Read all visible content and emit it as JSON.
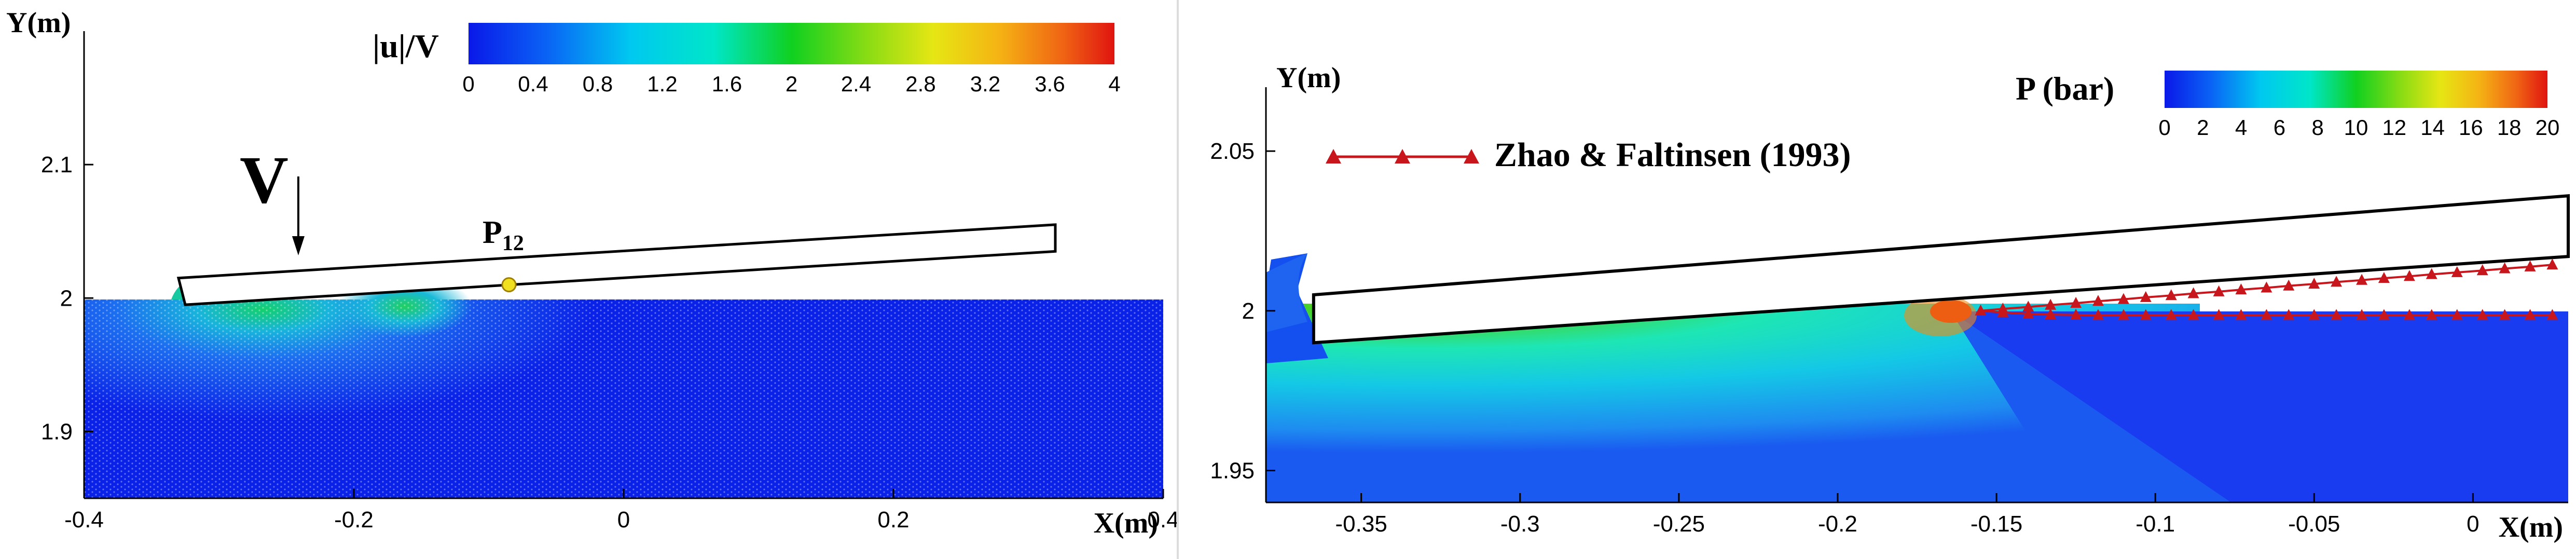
{
  "chart_data": [
    {
      "type": "heatmap",
      "title": "",
      "xlabel": "X(m)",
      "ylabel": "Y(m)",
      "xlim": [
        -0.4,
        0.4
      ],
      "ylim": [
        1.85,
        2.2
      ],
      "xticks": [
        -0.4,
        -0.2,
        0,
        0.2,
        0.4
      ],
      "xtick_labels": [
        "-0.4",
        "-0.2",
        "0",
        "0.2",
        "0.4"
      ],
      "yticks": [
        1.9,
        2.0,
        2.1
      ],
      "ytick_labels": [
        "1.9",
        "2",
        "2.1"
      ],
      "colorbar": {
        "label": "|u|/V",
        "range": [
          0,
          4
        ],
        "ticks": [
          "0",
          "0.4",
          "0.8",
          "1.2",
          "1.6",
          "2",
          "2.4",
          "2.8",
          "3.2",
          "3.6",
          "4"
        ]
      },
      "annotations": {
        "velocity_label": "V",
        "probe_label": "P",
        "probe_subscript": "12"
      },
      "plate": [
        [
          -0.325,
          1.995
        ],
        [
          -0.33,
          2.015
        ],
        [
          0.32,
          2.055
        ],
        [
          0.32,
          2.035
        ]
      ],
      "probe_point": [
        -0.085,
        2.01
      ],
      "free_surface_y": 2.0,
      "colors": {
        "low": "#0a2bf0",
        "mid": "#14c864",
        "high": "#d81a12"
      }
    },
    {
      "type": "heatmap",
      "title": "",
      "xlabel": "X(m)",
      "ylabel": "Y(m)",
      "xlim": [
        -0.38,
        0.03
      ],
      "ylim": [
        1.94,
        2.07
      ],
      "xticks": [
        -0.35,
        -0.3,
        -0.25,
        -0.2,
        -0.15,
        -0.1,
        -0.05,
        0
      ],
      "xtick_labels": [
        "-0.35",
        "-0.3",
        "-0.25",
        "-0.2",
        "-0.15",
        "-0.1",
        "-0.05",
        "0"
      ],
      "yticks": [
        1.95,
        2.0,
        2.05
      ],
      "ytick_labels": [
        "1.95",
        "2",
        "2.05"
      ],
      "colorbar": {
        "label": "P (bar)",
        "range": [
          0,
          20
        ],
        "ticks": [
          "0",
          "2",
          "4",
          "6",
          "8",
          "10",
          "12",
          "14",
          "16",
          "18",
          "20"
        ]
      },
      "legend": [
        {
          "name": "Zhao & Faltinsen (1993)",
          "marker": "triangle",
          "color": "#c8161d"
        }
      ],
      "plate": [
        [
          -0.365,
          1.99
        ],
        [
          -0.365,
          2.005
        ],
        [
          0.03,
          2.036
        ],
        [
          0.03,
          2.017
        ]
      ],
      "stagnation_x": -0.16,
      "series": [
        {
          "name": "Zhao & Faltinsen (1993)",
          "x": [
            -0.155,
            -0.148,
            -0.14,
            -0.133,
            -0.125,
            -0.118,
            -0.11,
            -0.103,
            -0.095,
            -0.088,
            -0.08,
            -0.073,
            -0.065,
            -0.058,
            -0.05,
            -0.043,
            -0.035,
            -0.028,
            -0.02,
            -0.013,
            -0.005,
            0.003,
            0.01,
            0.018,
            0.025
          ],
          "y_upper": [
            2.0,
            2.0006,
            2.0012,
            2.0018,
            2.0024,
            2.003,
            2.0036,
            2.0042,
            2.0048,
            2.0054,
            2.006,
            2.0066,
            2.0072,
            2.0078,
            2.0084,
            2.009,
            2.0096,
            2.0102,
            2.0108,
            2.0114,
            2.012,
            2.0126,
            2.0132,
            2.0138,
            2.0144
          ],
          "y_lower": [
            2.0,
            1.9995,
            1.999,
            1.9988,
            1.9987,
            1.9986,
            1.9986,
            1.9986,
            1.9986,
            1.9986,
            1.9986,
            1.9986,
            1.9986,
            1.9986,
            1.9986,
            1.9986,
            1.9986,
            1.9986,
            1.9986,
            1.9986,
            1.9986,
            1.9986,
            1.9986,
            1.9986,
            1.9986
          ]
        }
      ],
      "colors": {
        "low": "#0a2bf0",
        "mid": "#14c864",
        "high": "#d81a12"
      }
    }
  ]
}
